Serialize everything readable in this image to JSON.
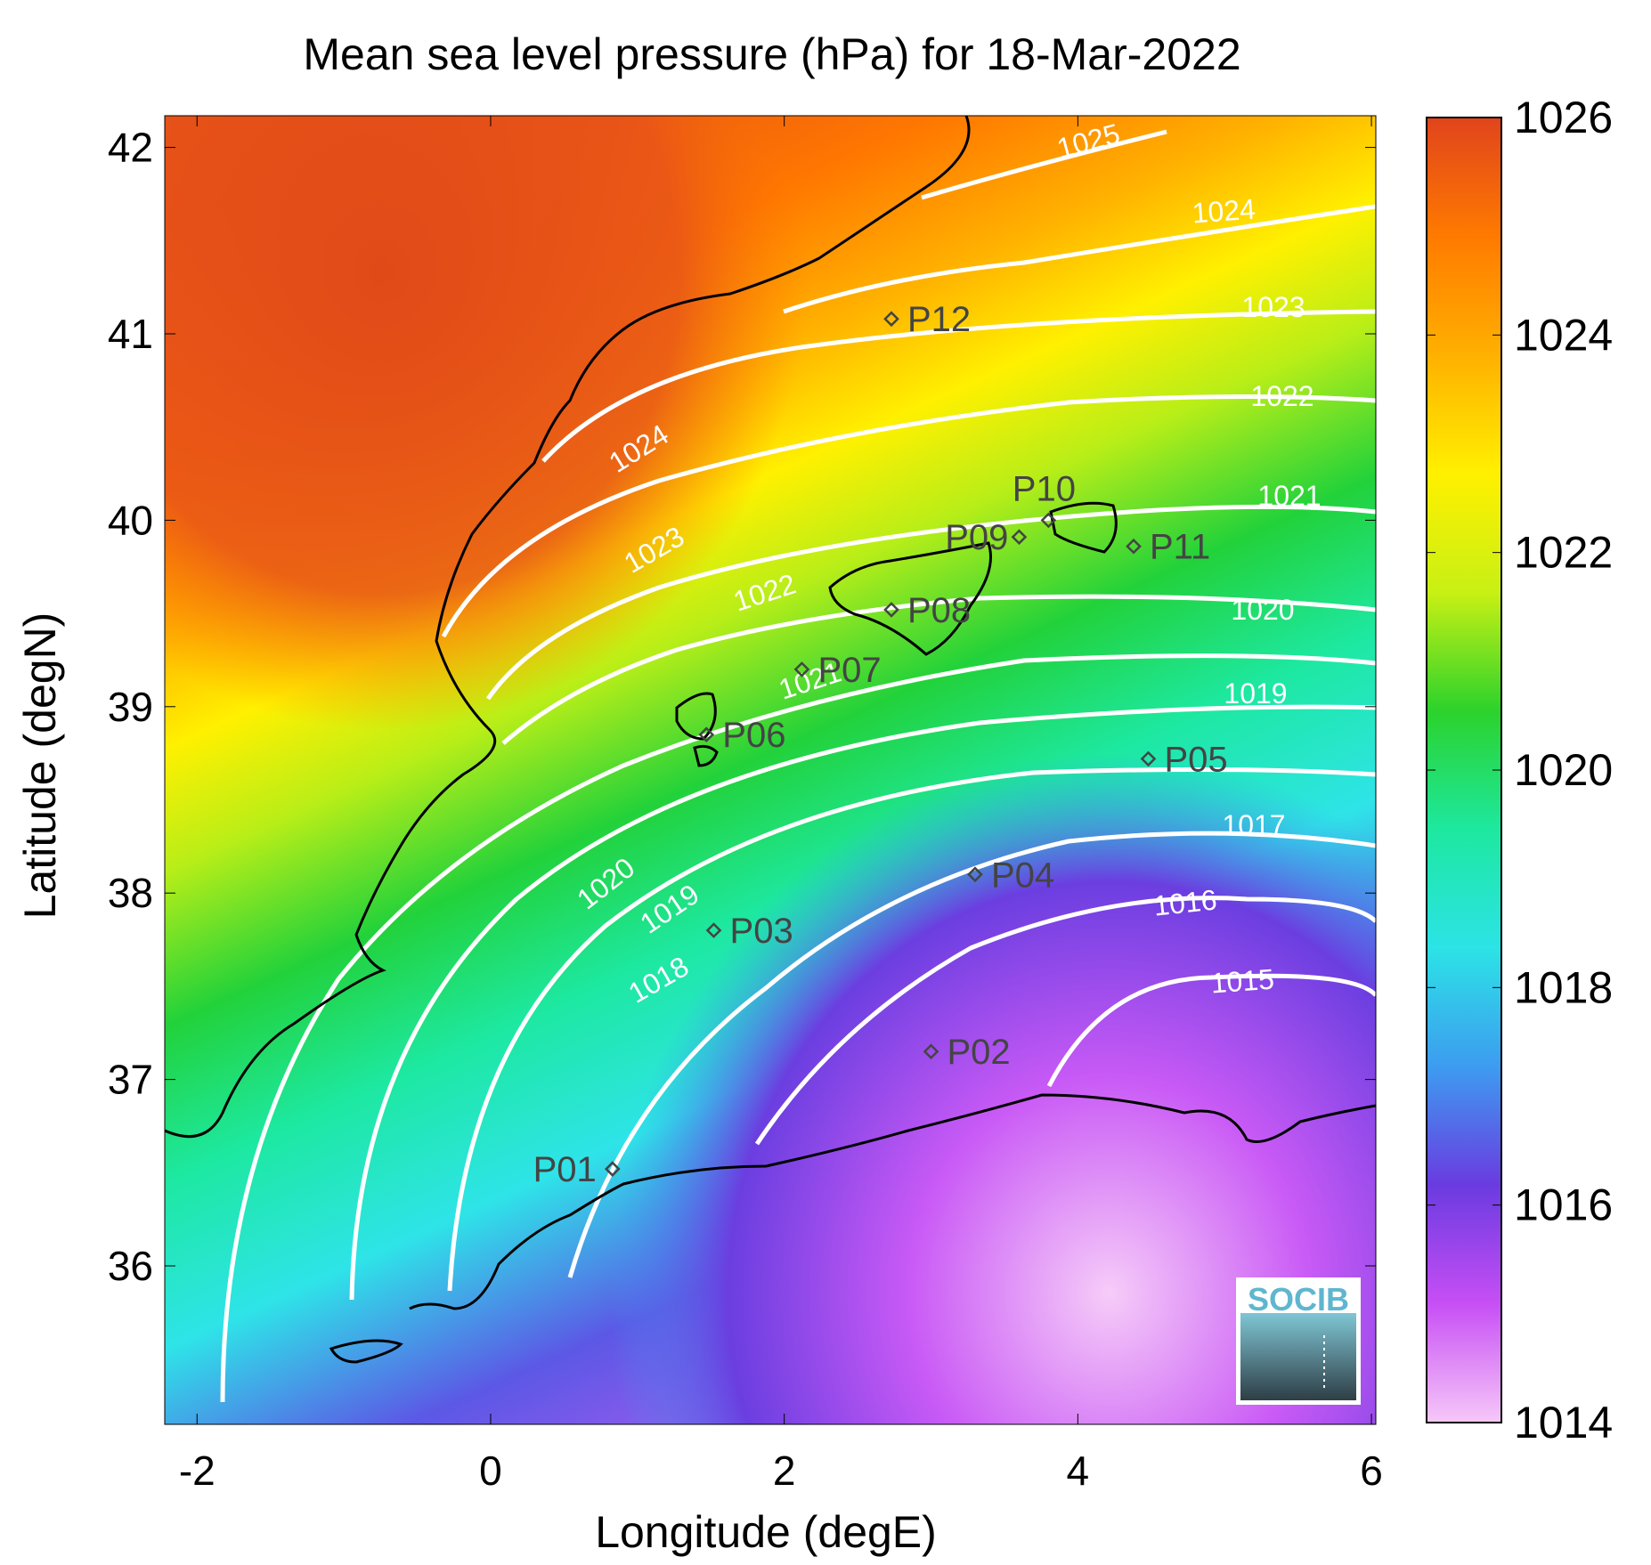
{
  "title": "Mean sea level pressure (hPa) for 18-Mar-2022",
  "xlabel": "Longitude (degE)",
  "ylabel": "Latitude (degN)",
  "x_ticks": [
    -2,
    0,
    2,
    4,
    6
  ],
  "y_ticks": [
    36,
    37,
    38,
    39,
    40,
    41,
    42
  ],
  "x_range": [
    -2.22,
    6.03
  ],
  "y_range": [
    35.15,
    42.17
  ],
  "colorbar": {
    "ticks": [
      1014,
      1016,
      1018,
      1020,
      1022,
      1024,
      1026
    ],
    "range": [
      1014,
      1026
    ],
    "colors": [
      "#f6c8f8",
      "#c74ff5",
      "#6a3be0",
      "#3d9cf0",
      "#2ce3e6",
      "#1de89f",
      "#2cd22c",
      "#c8f014",
      "#fff000",
      "#ffb000",
      "#ff7a00",
      "#e0441c"
    ]
  },
  "logo_text": "SOCIB",
  "contour_labels": [
    "1015",
    "1016",
    "1017",
    "1018",
    "1019",
    "1020",
    "1021",
    "1022",
    "1023",
    "1024",
    "1025"
  ],
  "chart_data": {
    "type": "heatmap",
    "title": "Mean sea level pressure (hPa) for 18-Mar-2022",
    "xlabel": "Longitude (degE)",
    "ylabel": "Latitude (degN)",
    "xlim": [
      -2.22,
      6.03
    ],
    "ylim": [
      35.15,
      42.17
    ],
    "clim": [
      1014,
      1026
    ],
    "points": [
      {
        "name": "P01",
        "lon": 0.83,
        "lat": 36.52
      },
      {
        "name": "P02",
        "lon": 3.0,
        "lat": 37.15
      },
      {
        "name": "P03",
        "lon": 1.52,
        "lat": 37.8
      },
      {
        "name": "P04",
        "lon": 3.3,
        "lat": 38.1
      },
      {
        "name": "P05",
        "lon": 4.48,
        "lat": 38.72
      },
      {
        "name": "P06",
        "lon": 1.47,
        "lat": 38.85
      },
      {
        "name": "P07",
        "lon": 2.12,
        "lat": 39.2
      },
      {
        "name": "P08",
        "lon": 2.73,
        "lat": 39.52
      },
      {
        "name": "P09",
        "lon": 3.6,
        "lat": 39.91
      },
      {
        "name": "P10",
        "lon": 3.8,
        "lat": 40.0
      },
      {
        "name": "P11",
        "lon": 4.38,
        "lat": 39.86
      },
      {
        "name": "P12",
        "lon": 2.73,
        "lat": 41.08
      }
    ]
  }
}
